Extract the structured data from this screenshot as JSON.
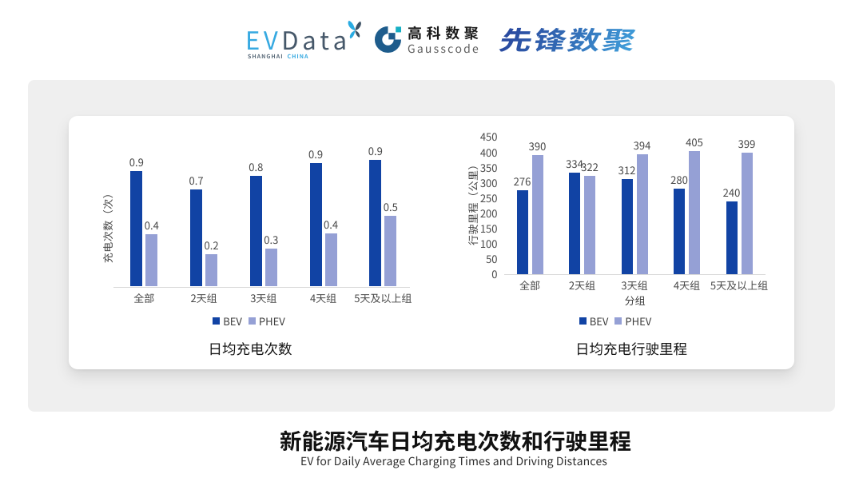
{
  "page": {
    "background": "#ffffff",
    "panel_color": "#efefef",
    "card_color": "#ffffff"
  },
  "header": {
    "evdata_logo": {
      "ev": "EV",
      "data": "Data",
      "sub_shanghai": "SHANGHAI",
      "sub_china": "CHINA",
      "ev_color": "#36A9E1",
      "data_color": "#46586A"
    },
    "gausscode_logo": {
      "name_cjk": "高科数聚",
      "name_latin": "Gausscode",
      "ring_color": "#1E5C8C",
      "teal_color": "#16AFC4"
    },
    "xianfeng_logo": {
      "text": "先锋数聚",
      "gradient_from": "#2B4FA2",
      "gradient_mid": "#3579BE",
      "gradient_to": "#41A1DC"
    }
  },
  "footer": {
    "title": "新能源汽车日均充电次数和行驶里程",
    "subtitle": "EV for Daily Average Charging Times and Driving Distances"
  },
  "chart_data": [
    {
      "type": "bar",
      "title": "日均充电次数",
      "ylabel": "充电次数（次）",
      "xlabel": "",
      "categories": [
        "全部",
        "2天组",
        "3天组",
        "4天组",
        "5天及以上组"
      ],
      "series": [
        {
          "name": "BEV",
          "color": "#1143A4",
          "values": [
            0.9,
            0.7,
            0.8,
            0.9,
            0.9
          ],
          "labels": [
            "0.9",
            "0.7",
            "0.8",
            "0.9",
            "0.9"
          ],
          "plotted": [
            0.843,
            0.706,
            0.805,
            0.901,
            0.919
          ]
        },
        {
          "name": "PHEV",
          "color": "#95A0D5",
          "values": [
            0.4,
            0.2,
            0.3,
            0.4,
            0.5
          ],
          "labels": [
            "0.4",
            "0.2",
            "0.3",
            "0.4",
            "0.5"
          ],
          "plotted": [
            0.378,
            0.235,
            0.279,
            0.384,
            0.512
          ]
        }
      ],
      "ylim": [
        0,
        1
      ],
      "yticks": [],
      "gridlines": false,
      "value_labels": true,
      "legend_position": "bottom"
    },
    {
      "type": "bar",
      "title": "日均充电行驶里程",
      "ylabel": "行驶里程（公里）",
      "xlabel": "分组",
      "categories": [
        "全部",
        "2天组",
        "3天组",
        "4天组",
        "5天及以上组"
      ],
      "series": [
        {
          "name": "BEV",
          "color": "#1143A4",
          "values": [
            276,
            334,
            312,
            280,
            240
          ],
          "labels": [
            "276",
            "334",
            "312",
            "280",
            "240"
          ]
        },
        {
          "name": "PHEV",
          "color": "#95A0D5",
          "values": [
            390,
            322,
            394,
            405,
            399
          ],
          "labels": [
            "390",
            "322",
            "394",
            "405",
            "399"
          ]
        }
      ],
      "ylim": [
        0,
        450
      ],
      "yticks": [
        0,
        50,
        100,
        150,
        200,
        250,
        300,
        350,
        400,
        450
      ],
      "gridlines": false,
      "value_labels": true,
      "legend_position": "bottom"
    }
  ]
}
